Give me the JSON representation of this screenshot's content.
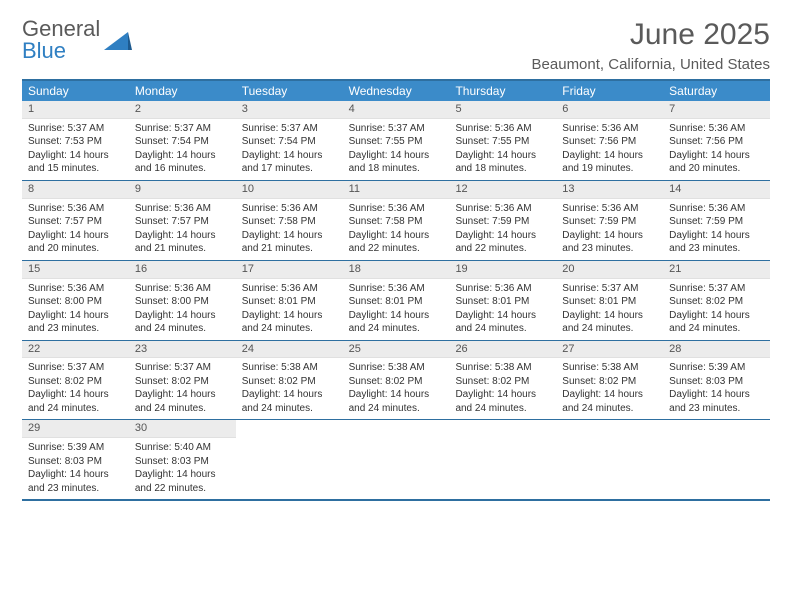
{
  "brand": {
    "part1": "General",
    "part2": "Blue"
  },
  "title": {
    "month": "June 2025",
    "location": "Beaumont, California, United States"
  },
  "colors": {
    "header_bg": "#3b8bc9",
    "header_border": "#2e6fa0",
    "daynum_bg": "#ececec",
    "text": "#333333",
    "muted": "#5a5a5a"
  },
  "day_labels": [
    "Sunday",
    "Monday",
    "Tuesday",
    "Wednesday",
    "Thursday",
    "Friday",
    "Saturday"
  ],
  "days": [
    {
      "n": "1",
      "sr": "Sunrise: 5:37 AM",
      "ss": "Sunset: 7:53 PM",
      "dl": "Daylight: 14 hours and 15 minutes."
    },
    {
      "n": "2",
      "sr": "Sunrise: 5:37 AM",
      "ss": "Sunset: 7:54 PM",
      "dl": "Daylight: 14 hours and 16 minutes."
    },
    {
      "n": "3",
      "sr": "Sunrise: 5:37 AM",
      "ss": "Sunset: 7:54 PM",
      "dl": "Daylight: 14 hours and 17 minutes."
    },
    {
      "n": "4",
      "sr": "Sunrise: 5:37 AM",
      "ss": "Sunset: 7:55 PM",
      "dl": "Daylight: 14 hours and 18 minutes."
    },
    {
      "n": "5",
      "sr": "Sunrise: 5:36 AM",
      "ss": "Sunset: 7:55 PM",
      "dl": "Daylight: 14 hours and 18 minutes."
    },
    {
      "n": "6",
      "sr": "Sunrise: 5:36 AM",
      "ss": "Sunset: 7:56 PM",
      "dl": "Daylight: 14 hours and 19 minutes."
    },
    {
      "n": "7",
      "sr": "Sunrise: 5:36 AM",
      "ss": "Sunset: 7:56 PM",
      "dl": "Daylight: 14 hours and 20 minutes."
    },
    {
      "n": "8",
      "sr": "Sunrise: 5:36 AM",
      "ss": "Sunset: 7:57 PM",
      "dl": "Daylight: 14 hours and 20 minutes."
    },
    {
      "n": "9",
      "sr": "Sunrise: 5:36 AM",
      "ss": "Sunset: 7:57 PM",
      "dl": "Daylight: 14 hours and 21 minutes."
    },
    {
      "n": "10",
      "sr": "Sunrise: 5:36 AM",
      "ss": "Sunset: 7:58 PM",
      "dl": "Daylight: 14 hours and 21 minutes."
    },
    {
      "n": "11",
      "sr": "Sunrise: 5:36 AM",
      "ss": "Sunset: 7:58 PM",
      "dl": "Daylight: 14 hours and 22 minutes."
    },
    {
      "n": "12",
      "sr": "Sunrise: 5:36 AM",
      "ss": "Sunset: 7:59 PM",
      "dl": "Daylight: 14 hours and 22 minutes."
    },
    {
      "n": "13",
      "sr": "Sunrise: 5:36 AM",
      "ss": "Sunset: 7:59 PM",
      "dl": "Daylight: 14 hours and 23 minutes."
    },
    {
      "n": "14",
      "sr": "Sunrise: 5:36 AM",
      "ss": "Sunset: 7:59 PM",
      "dl": "Daylight: 14 hours and 23 minutes."
    },
    {
      "n": "15",
      "sr": "Sunrise: 5:36 AM",
      "ss": "Sunset: 8:00 PM",
      "dl": "Daylight: 14 hours and 23 minutes."
    },
    {
      "n": "16",
      "sr": "Sunrise: 5:36 AM",
      "ss": "Sunset: 8:00 PM",
      "dl": "Daylight: 14 hours and 24 minutes."
    },
    {
      "n": "17",
      "sr": "Sunrise: 5:36 AM",
      "ss": "Sunset: 8:01 PM",
      "dl": "Daylight: 14 hours and 24 minutes."
    },
    {
      "n": "18",
      "sr": "Sunrise: 5:36 AM",
      "ss": "Sunset: 8:01 PM",
      "dl": "Daylight: 14 hours and 24 minutes."
    },
    {
      "n": "19",
      "sr": "Sunrise: 5:36 AM",
      "ss": "Sunset: 8:01 PM",
      "dl": "Daylight: 14 hours and 24 minutes."
    },
    {
      "n": "20",
      "sr": "Sunrise: 5:37 AM",
      "ss": "Sunset: 8:01 PM",
      "dl": "Daylight: 14 hours and 24 minutes."
    },
    {
      "n": "21",
      "sr": "Sunrise: 5:37 AM",
      "ss": "Sunset: 8:02 PM",
      "dl": "Daylight: 14 hours and 24 minutes."
    },
    {
      "n": "22",
      "sr": "Sunrise: 5:37 AM",
      "ss": "Sunset: 8:02 PM",
      "dl": "Daylight: 14 hours and 24 minutes."
    },
    {
      "n": "23",
      "sr": "Sunrise: 5:37 AM",
      "ss": "Sunset: 8:02 PM",
      "dl": "Daylight: 14 hours and 24 minutes."
    },
    {
      "n": "24",
      "sr": "Sunrise: 5:38 AM",
      "ss": "Sunset: 8:02 PM",
      "dl": "Daylight: 14 hours and 24 minutes."
    },
    {
      "n": "25",
      "sr": "Sunrise: 5:38 AM",
      "ss": "Sunset: 8:02 PM",
      "dl": "Daylight: 14 hours and 24 minutes."
    },
    {
      "n": "26",
      "sr": "Sunrise: 5:38 AM",
      "ss": "Sunset: 8:02 PM",
      "dl": "Daylight: 14 hours and 24 minutes."
    },
    {
      "n": "27",
      "sr": "Sunrise: 5:38 AM",
      "ss": "Sunset: 8:02 PM",
      "dl": "Daylight: 14 hours and 24 minutes."
    },
    {
      "n": "28",
      "sr": "Sunrise: 5:39 AM",
      "ss": "Sunset: 8:03 PM",
      "dl": "Daylight: 14 hours and 23 minutes."
    },
    {
      "n": "29",
      "sr": "Sunrise: 5:39 AM",
      "ss": "Sunset: 8:03 PM",
      "dl": "Daylight: 14 hours and 23 minutes."
    },
    {
      "n": "30",
      "sr": "Sunrise: 5:40 AM",
      "ss": "Sunset: 8:03 PM",
      "dl": "Daylight: 14 hours and 22 minutes."
    }
  ]
}
